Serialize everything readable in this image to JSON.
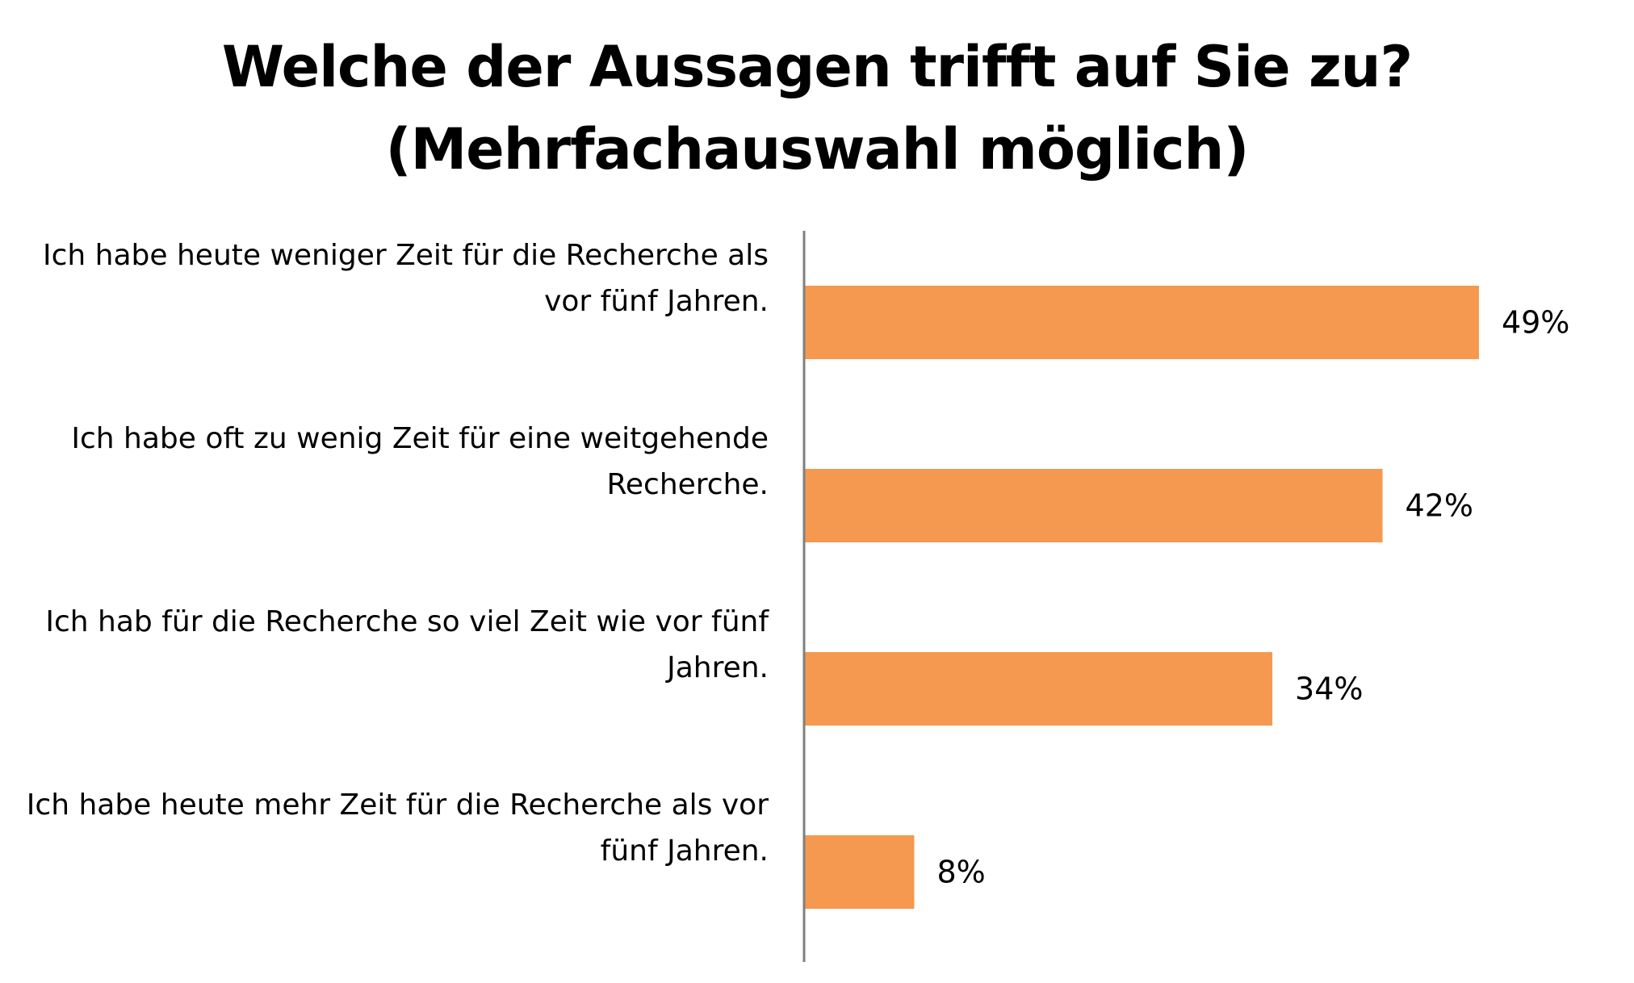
{
  "title": {
    "line1": "Welche der Aussagen trifft auf Sie zu?",
    "line2": "(Mehrfachauswahl möglich)"
  },
  "chart_data": {
    "type": "bar",
    "orientation": "horizontal",
    "title": "Welche der Aussagen trifft auf Sie zu? (Mehrfachauswahl möglich)",
    "categories": [
      [
        "Ich habe heute weniger Zeit für die Recherche als",
        "vor fünf Jahren."
      ],
      [
        "Ich habe oft zu wenig Zeit für eine weitgehende",
        "Recherche."
      ],
      [
        "Ich hab für die Recherche so viel Zeit wie vor fünf",
        "Jahren."
      ],
      [
        "Ich habe heute mehr Zeit für die Recherche als vor",
        "fünf Jahren."
      ]
    ],
    "values": [
      49,
      42,
      34,
      8
    ],
    "value_labels": [
      "49%",
      "42%",
      "34%",
      "8%"
    ],
    "unit": "%",
    "xlim": [
      0,
      100
    ],
    "grid": false,
    "legend": "none",
    "bar_color": "#F4994F",
    "axis_color": "#7f7f7f"
  }
}
